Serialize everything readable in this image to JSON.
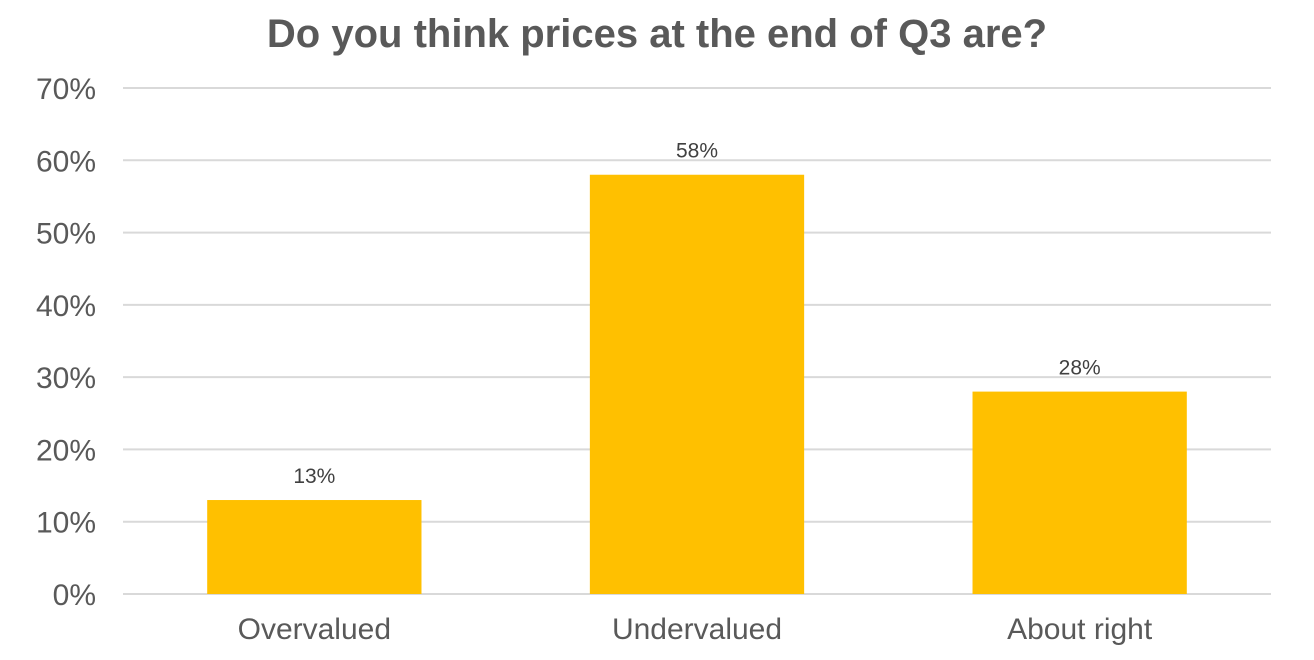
{
  "chart_data": {
    "type": "bar",
    "title": "Do you think prices at the end of Q3 are?",
    "xlabel": "",
    "ylabel": "",
    "categories": [
      "Overvalued",
      "Undervalued",
      "About right"
    ],
    "values": [
      13,
      58,
      28
    ],
    "data_labels": [
      "13%",
      "58%",
      "28%"
    ],
    "ylim": [
      0,
      70
    ],
    "yticks": [
      0,
      10,
      20,
      30,
      40,
      50,
      60,
      70
    ],
    "ytick_labels": [
      "0%",
      "10%",
      "20%",
      "30%",
      "40%",
      "50%",
      "60%",
      "70%"
    ],
    "grid": true,
    "legend": "none",
    "bar_color": "#FFC000",
    "grid_color": "#D9D9D9",
    "text_color": "#595959"
  }
}
